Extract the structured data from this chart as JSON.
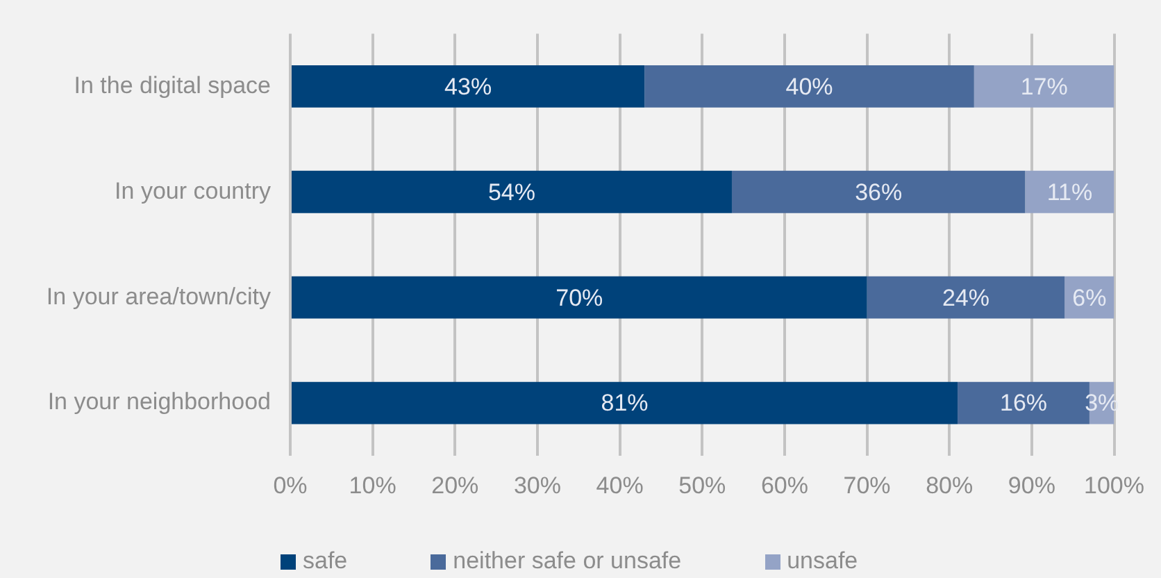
{
  "chart_data": {
    "type": "bar",
    "orientation": "horizontal",
    "stacked": true,
    "categories": [
      "In the digital space",
      "In your country",
      "In your area/town/city",
      "In your neighborhood"
    ],
    "series": [
      {
        "name": "safe",
        "color": "#00427a",
        "values": [
          43,
          53.6,
          70,
          81
        ],
        "value_labels": [
          "43%",
          "54%",
          "70%",
          "81%"
        ]
      },
      {
        "name": "neither safe or unsafe",
        "color": "#4a6a9b",
        "values": [
          40,
          35.6,
          24,
          16
        ],
        "value_labels": [
          "40%",
          "36%",
          "24%",
          "16%"
        ]
      },
      {
        "name": "unsafe",
        "color": "#94a3c6",
        "values": [
          17,
          10.8,
          6,
          3
        ],
        "value_labels": [
          "17%",
          "11%",
          "6%",
          "3%"
        ]
      }
    ],
    "xlim": [
      0,
      100
    ],
    "xticks": [
      {
        "value": 0,
        "label": "0%"
      },
      {
        "value": 10,
        "label": "10%"
      },
      {
        "value": 20,
        "label": "20%"
      },
      {
        "value": 30,
        "label": "30%"
      },
      {
        "value": 40,
        "label": "40%"
      },
      {
        "value": 50,
        "label": "50%"
      },
      {
        "value": 60,
        "label": "60%"
      },
      {
        "value": 70,
        "label": "70%"
      },
      {
        "value": 80,
        "label": "80%"
      },
      {
        "value": 90,
        "label": "90%"
      },
      {
        "value": 100,
        "label": "100%"
      }
    ],
    "grid": "x",
    "legend": "bottom"
  }
}
